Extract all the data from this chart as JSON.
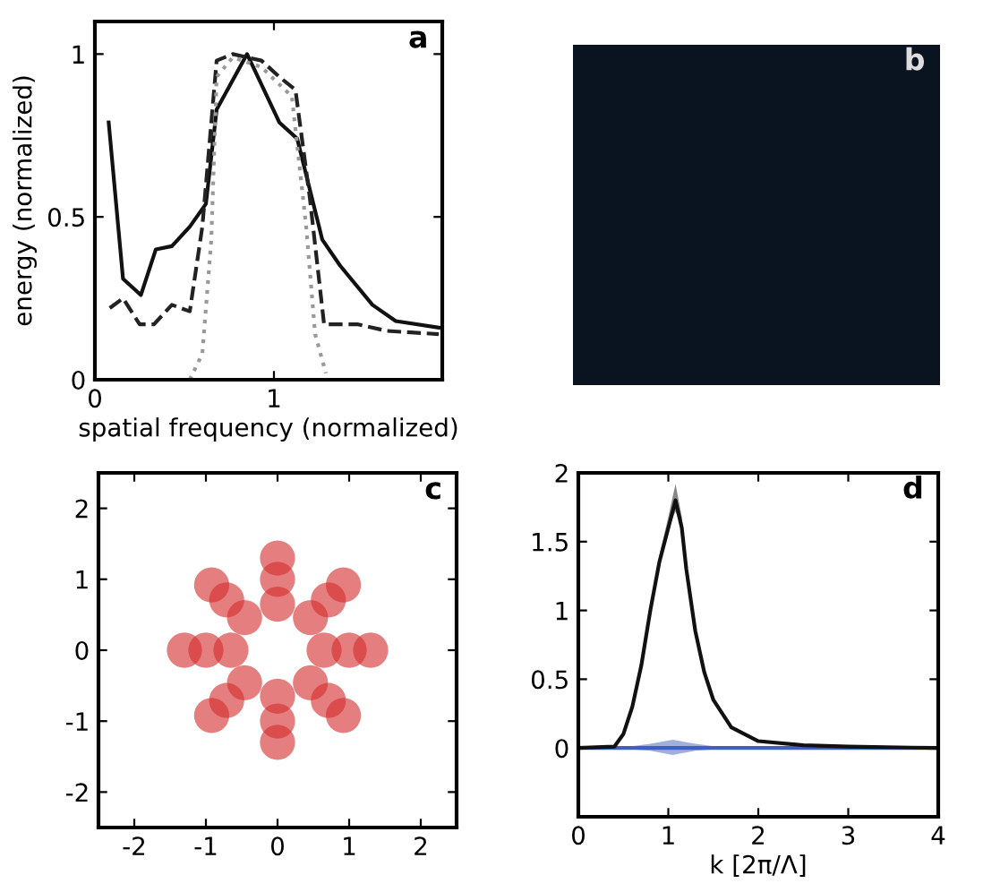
{
  "chart_data": [
    {
      "type": "line",
      "title": "a",
      "xlabel": "spatial frequency (normalized)",
      "ylabel": "energy (normalized)",
      "xlim": [
        0,
        1.94
      ],
      "ylim": [
        0,
        1.1
      ],
      "xticks": [
        0,
        1
      ],
      "yticks": [
        0,
        0.5,
        1
      ],
      "grid": false,
      "legend": false,
      "series": [
        {
          "color": "#111111",
          "line_style": "solid",
          "x": [
            0.077,
            0.157,
            0.257,
            0.34,
            0.43,
            0.53,
            0.62,
            0.68,
            0.85,
            1.03,
            1.13,
            1.27,
            1.37,
            1.55,
            1.68,
            1.92
          ],
          "values": [
            0.79,
            0.31,
            0.26,
            0.4,
            0.41,
            0.47,
            0.54,
            0.83,
            1.0,
            0.79,
            0.74,
            0.43,
            0.35,
            0.23,
            0.18,
            0.16
          ]
        },
        {
          "color": "#222222",
          "line_style": "dashed",
          "x": [
            0.083,
            0.157,
            0.25,
            0.33,
            0.43,
            0.53,
            0.6,
            0.68,
            0.77,
            0.93,
            1.03,
            1.12,
            1.2,
            1.28,
            1.47,
            1.63,
            1.92
          ],
          "values": [
            0.22,
            0.25,
            0.17,
            0.17,
            0.23,
            0.21,
            0.47,
            0.98,
            1.0,
            0.98,
            0.93,
            0.89,
            0.56,
            0.17,
            0.17,
            0.15,
            0.14
          ]
        },
        {
          "color": "#999999",
          "line_style": "dotted",
          "x": [
            0.53,
            0.6,
            0.65,
            0.68,
            0.77,
            0.93,
            1.1,
            1.18,
            1.23,
            1.29
          ],
          "values": [
            0,
            0.08,
            0.43,
            0.93,
            0.99,
            0.96,
            0.87,
            0.47,
            0.14,
            0.02
          ]
        }
      ]
    },
    {
      "type": "other",
      "title": "b"
    },
    {
      "type": "scatter",
      "title": "c",
      "xlim": [
        -2.5,
        2.5
      ],
      "ylim": [
        -2.5,
        2.5
      ],
      "xticks": [
        -2,
        -1,
        0,
        1,
        2
      ],
      "yticks": [
        -2,
        -1,
        0,
        1,
        2
      ],
      "grid": false,
      "marker": "circle",
      "series": [
        {
          "color": "#d42a2a",
          "x": [
            0.65,
            0.46,
            0.0,
            -0.46,
            -0.65,
            -0.46,
            0.0,
            0.46,
            1.0,
            0.71,
            0.0,
            -0.71,
            -1.0,
            -0.71,
            0.0,
            0.71,
            1.3,
            0.92,
            0.0,
            -0.92,
            -1.3,
            -0.92,
            0.0,
            0.92
          ],
          "values": [
            0.0,
            0.46,
            0.65,
            0.46,
            0.0,
            -0.46,
            -0.65,
            -0.46,
            0.0,
            0.71,
            1.0,
            0.71,
            0.0,
            -0.71,
            -1.0,
            -0.71,
            0.0,
            0.92,
            1.3,
            0.92,
            0.0,
            -0.92,
            -1.3,
            -0.92
          ]
        }
      ]
    },
    {
      "type": "line",
      "title": "d",
      "xlabel": "k [2π/Λ]",
      "xlim": [
        0,
        4
      ],
      "ylim": [
        -0.5,
        2
      ],
      "xticks": [
        0,
        1,
        2,
        3,
        4
      ],
      "yticks": [
        0,
        0.5,
        1,
        1.5,
        2
      ],
      "grid": false,
      "series": [
        {
          "color": "#4060c0",
          "x": [
            0,
            0.5,
            0.8,
            1.05,
            1.3,
            1.6,
            2,
            4
          ],
          "values": [
            0,
            0,
            0,
            0,
            0,
            0,
            0,
            0
          ],
          "lower": [
            0,
            -0.005,
            -0.02,
            -0.05,
            -0.02,
            -0.005,
            0,
            0
          ],
          "upper": [
            0,
            0.005,
            0.03,
            0.06,
            0.03,
            0.005,
            0,
            0
          ]
        },
        {
          "color": "#111111",
          "x": [
            0,
            0.4,
            0.5,
            0.6,
            0.7,
            0.8,
            0.9,
            1.0,
            1.08,
            1.15,
            1.2,
            1.3,
            1.4,
            1.5,
            1.7,
            2.0,
            2.5,
            3,
            4
          ],
          "values": [
            0,
            0.01,
            0.1,
            0.3,
            0.6,
            1.0,
            1.35,
            1.6,
            1.8,
            1.6,
            1.3,
            0.85,
            0.55,
            0.35,
            0.15,
            0.05,
            0.02,
            0.01,
            0
          ],
          "lower": [
            0,
            0.01,
            0.1,
            0.3,
            0.6,
            1.0,
            1.35,
            1.6,
            1.72,
            1.6,
            1.3,
            0.85,
            0.55,
            0.35,
            0.15,
            0.05,
            0.02,
            0.01,
            0
          ],
          "upper": [
            0,
            0.01,
            0.1,
            0.3,
            0.62,
            1.03,
            1.4,
            1.68,
            1.92,
            1.68,
            1.33,
            0.85,
            0.55,
            0.35,
            0.15,
            0.05,
            0.02,
            0.01,
            0
          ]
        }
      ]
    }
  ]
}
